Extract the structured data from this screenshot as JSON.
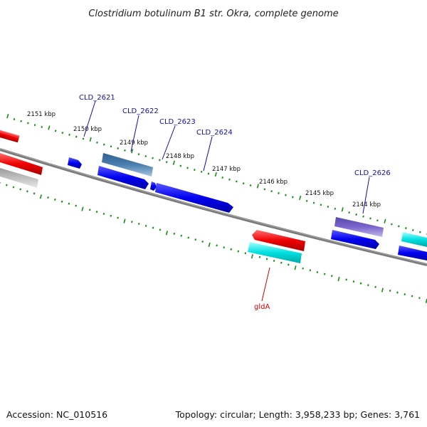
{
  "title": "Clostridium botulinum B1 str. Okra, complete genome",
  "footer": {
    "accession": "Accession: NC_010516",
    "summary": "Topology: circular; Length: 3,958,233 bp; Genes: 3,761"
  },
  "scale_labels": [
    "2151 kbp",
    "2150 kbp",
    "2149 kbp",
    "2148 kbp",
    "2147 kbp",
    "2146 kbp",
    "2145 kbp",
    "2144 kbp"
  ],
  "gene_labels": [
    {
      "text": "CLD_2621",
      "color": "#1010aa"
    },
    {
      "text": "CLD_2622",
      "color": "#1010aa"
    },
    {
      "text": "CLD_2623",
      "color": "#1010aa"
    },
    {
      "text": "CLD_2624",
      "color": "#1010aa"
    },
    {
      "text": "CLD_2626",
      "color": "#1010aa"
    },
    {
      "text": "gldA",
      "color": "#cc0000"
    }
  ],
  "colors": {
    "backbone": "#7a7a7a",
    "ticks": "#1a8a1a",
    "cds": "#0000ee",
    "rna": "#ee0000",
    "cyan": "#00e0e0",
    "steel": "#4a7fb0",
    "purple": "#7a66cc",
    "grey": "#c0c0c0"
  }
}
